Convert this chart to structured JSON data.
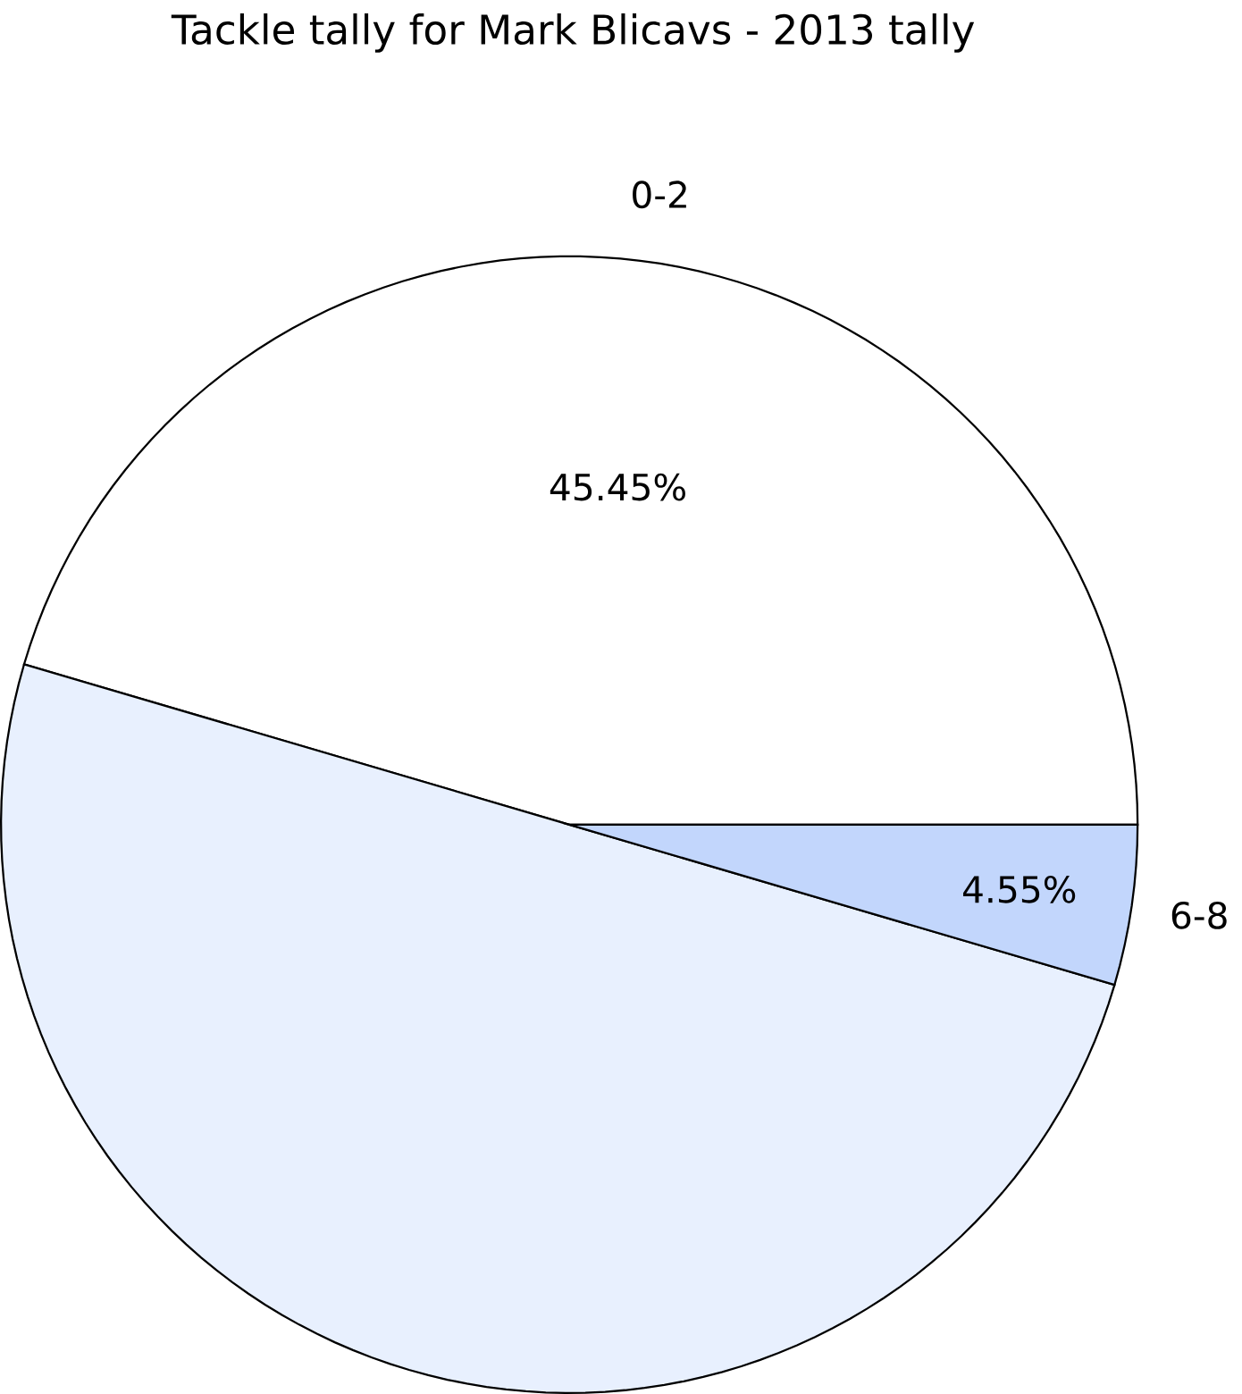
{
  "chart_data": {
    "type": "pie",
    "title": "Tackle tally for Mark Blicavs - 2013 tally",
    "categories": [
      "0-2",
      null,
      "6-8"
    ],
    "values": [
      45.45,
      50,
      4.55
    ],
    "colors": [
      "#ffffff",
      "#e8f0fe",
      "#c2d6fc"
    ],
    "value_labels": [
      "45.45%",
      null,
      "4.55%"
    ]
  }
}
